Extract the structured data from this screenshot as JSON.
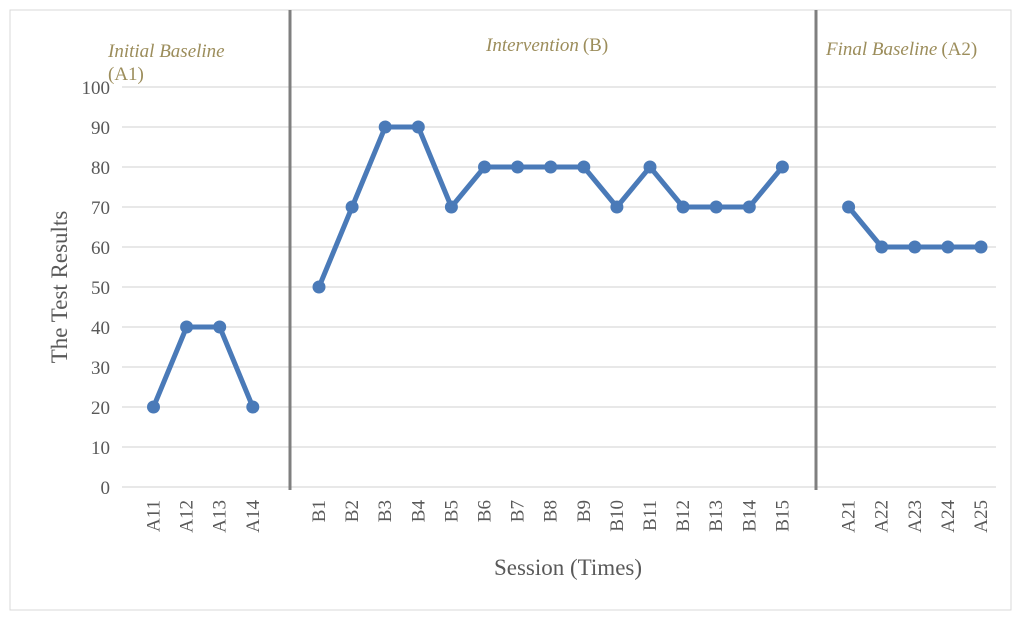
{
  "chart_data": {
    "type": "line",
    "xlabel": "Session (Times)",
    "ylabel": "The Test Results",
    "ylim": [
      0,
      100
    ],
    "yticks": [
      0,
      10,
      20,
      30,
      40,
      50,
      60,
      70,
      80,
      90,
      100
    ],
    "grid": true,
    "line_color": "#4a7ab8",
    "phases": [
      {
        "label_italic": "Initial Baseline",
        "label_suffix": "(A1)",
        "categories": [
          "A11",
          "A12",
          "A13",
          "A14"
        ],
        "values": [
          20,
          40,
          40,
          20
        ]
      },
      {
        "label_italic": "Intervention",
        "label_suffix": "(B)",
        "categories": [
          "B1",
          "B2",
          "B3",
          "B4",
          "B5",
          "B6",
          "B7",
          "B8",
          "B9",
          "B10",
          "B11",
          "B12",
          "B13",
          "B14",
          "B15"
        ],
        "values": [
          50,
          70,
          90,
          90,
          70,
          80,
          80,
          80,
          80,
          70,
          80,
          70,
          70,
          70,
          80
        ]
      },
      {
        "label_italic": "Final Baseline",
        "label_suffix": "(A2)",
        "categories": [
          "A21",
          "A22",
          "A23",
          "A24",
          "A25"
        ],
        "values": [
          70,
          60,
          60,
          60,
          60
        ]
      }
    ]
  }
}
